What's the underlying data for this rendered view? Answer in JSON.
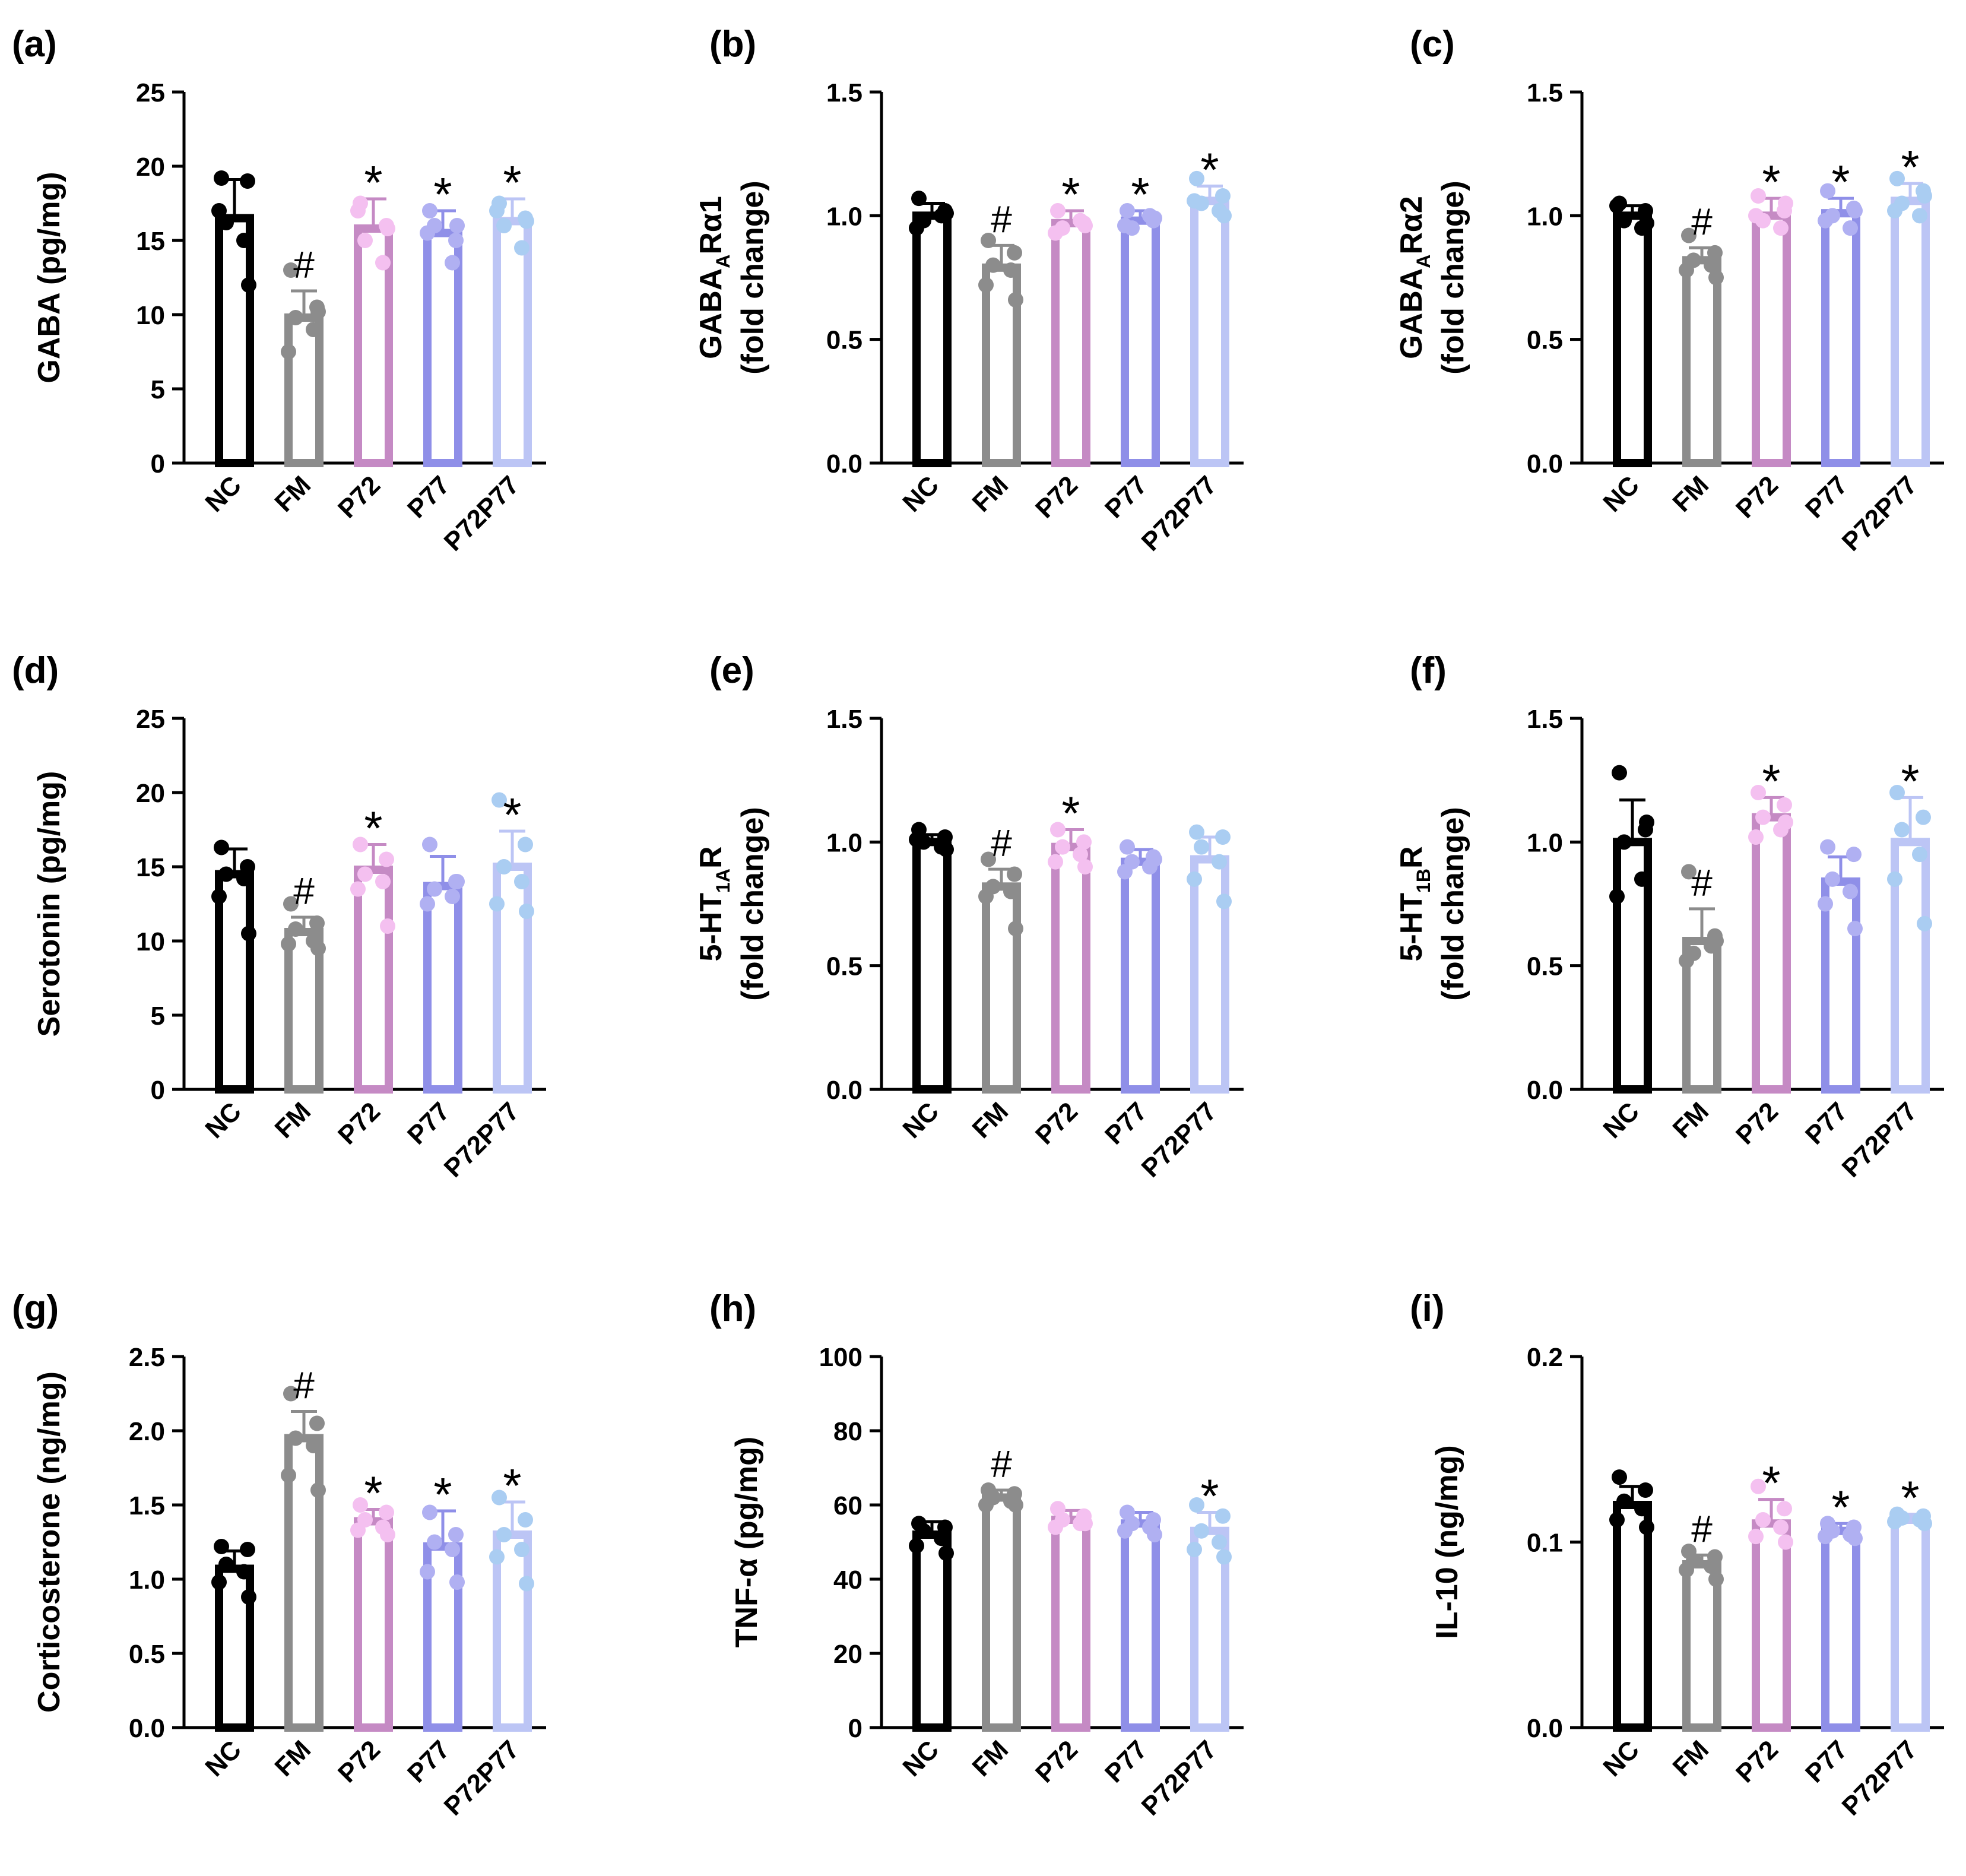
{
  "figure": {
    "categories": [
      "NC",
      "FM",
      "P72",
      "P77",
      "P72P77"
    ],
    "colors": {
      "NC": "#000000",
      "FM": "#8c8c8c",
      "P72": "#c58ac4",
      "P77": "#8f8fe8",
      "P72P77": "#bcc5f5",
      "P72_dots": "#f4c0f0",
      "P77_dots": "#b0b0f2",
      "P72P77_dots": "#aacdf2",
      "text": "#000000"
    }
  },
  "chart_data": [
    {
      "panel": "(a)",
      "type": "bar",
      "ylabel": "GABA (pg/mg)",
      "yticks": [
        "0",
        "5",
        "10",
        "15",
        "20",
        "25"
      ],
      "ylim": [
        0,
        25
      ],
      "categories": [
        "NC",
        "FM",
        "P72",
        "P77",
        "P72P77"
      ],
      "values": [
        16.5,
        9.8,
        15.8,
        15.5,
        16.3
      ],
      "errors": [
        2.6,
        1.8,
        2.0,
        1.5,
        1.5
      ],
      "points": [
        [
          19.2,
          19.0,
          16.2,
          15.0,
          17.0,
          12.0
        ],
        [
          13.0,
          10.5,
          9.8,
          9.0,
          7.5,
          10.2
        ],
        [
          17.5,
          16.0,
          15.0,
          13.5,
          17.0,
          15.8
        ],
        [
          17.0,
          15.0,
          16.0,
          13.5,
          15.5,
          16.0
        ],
        [
          17.5,
          16.5,
          16.0,
          14.5,
          17.0,
          16.3
        ]
      ],
      "markers": [
        "",
        "#",
        "*",
        "*",
        "*"
      ]
    },
    {
      "panel": "(b)",
      "type": "bar",
      "ylabel_main": "GABA",
      "ylabel_sub": "A",
      "ylabel_rest": "Rα1",
      "ylabel2": "(fold change)",
      "yticks": [
        "0.0",
        "0.5",
        "1.0",
        "1.5"
      ],
      "ylim": [
        0,
        1.5
      ],
      "categories": [
        "NC",
        "FM",
        "P72",
        "P77",
        "P72P77"
      ],
      "values": [
        1.0,
        0.79,
        0.97,
        0.98,
        1.06
      ],
      "errors": [
        0.05,
        0.09,
        0.05,
        0.04,
        0.06
      ],
      "points": [
        [
          1.07,
          1.02,
          0.98,
          1.0,
          0.95,
          1.01
        ],
        [
          0.9,
          0.85,
          0.8,
          0.78,
          0.72,
          0.66
        ],
        [
          1.02,
          0.97,
          0.95,
          0.98,
          0.93,
          0.96
        ],
        [
          1.02,
          0.98,
          0.95,
          1.0,
          0.96,
          0.99
        ],
        [
          1.15,
          1.08,
          1.05,
          1.02,
          1.06,
          1.0
        ]
      ],
      "markers": [
        "",
        "#",
        "*",
        "*",
        "*"
      ]
    },
    {
      "panel": "(c)",
      "type": "bar",
      "ylabel_main": "GABA",
      "ylabel_sub": "A",
      "ylabel_rest": "Rα2",
      "ylabel2": "(fold change)",
      "yticks": [
        "0.0",
        "0.5",
        "1.0",
        "1.5"
      ],
      "ylim": [
        0,
        1.5
      ],
      "categories": [
        "NC",
        "FM",
        "P72",
        "P77",
        "P72P77"
      ],
      "values": [
        1.0,
        0.82,
        1.0,
        1.01,
        1.06
      ],
      "errors": [
        0.04,
        0.05,
        0.07,
        0.06,
        0.07
      ],
      "points": [
        [
          1.05,
          1.02,
          0.98,
          0.95,
          1.04,
          0.97
        ],
        [
          0.92,
          0.85,
          0.82,
          0.8,
          0.78,
          0.75
        ],
        [
          1.08,
          1.02,
          0.98,
          0.95,
          1.0,
          1.05
        ],
        [
          1.1,
          1.03,
          1.0,
          0.95,
          0.98,
          1.02
        ],
        [
          1.15,
          1.1,
          1.05,
          1.0,
          1.02,
          1.08
        ]
      ],
      "markers": [
        "",
        "#",
        "*",
        "*",
        "*"
      ]
    },
    {
      "panel": "(d)",
      "type": "bar",
      "ylabel": "Serotonin (pg/mg)",
      "yticks": [
        "0",
        "5",
        "10",
        "15",
        "20",
        "25"
      ],
      "ylim": [
        0,
        25
      ],
      "categories": [
        "NC",
        "FM",
        "P72",
        "P77",
        "P72P77"
      ],
      "values": [
        14.5,
        10.6,
        14.8,
        13.7,
        15.0
      ],
      "errors": [
        1.7,
        1.0,
        1.7,
        2.0,
        2.4
      ],
      "points": [
        [
          16.3,
          15.0,
          14.5,
          14.2,
          13.0,
          10.5
        ],
        [
          12.5,
          11.2,
          10.8,
          10.0,
          9.8,
          9.5
        ],
        [
          16.5,
          15.5,
          14.5,
          14.0,
          13.5,
          11.0
        ],
        [
          16.5,
          14.0,
          13.5,
          13.0,
          12.5,
          14.0
        ],
        [
          19.5,
          16.5,
          15.0,
          14.0,
          12.5,
          12.0
        ]
      ],
      "markers": [
        "",
        "#",
        "*",
        "",
        "*"
      ]
    },
    {
      "panel": "(e)",
      "type": "bar",
      "ylabel_main": "5-HT",
      "ylabel_sub": "1A",
      "ylabel_rest": "R",
      "ylabel2": "(fold change)",
      "yticks": [
        "0.0",
        "0.5",
        "1.0",
        "1.5"
      ],
      "ylim": [
        0,
        1.5
      ],
      "categories": [
        "NC",
        "FM",
        "P72",
        "P77",
        "P72P77"
      ],
      "values": [
        1.0,
        0.82,
        0.98,
        0.92,
        0.93
      ],
      "errors": [
        0.03,
        0.07,
        0.07,
        0.05,
        0.09
      ],
      "points": [
        [
          1.05,
          1.02,
          1.0,
          0.98,
          1.01,
          0.97
        ],
        [
          0.93,
          0.87,
          0.82,
          0.8,
          0.78,
          0.65
        ],
        [
          1.05,
          1.0,
          0.98,
          0.95,
          0.92,
          0.9
        ],
        [
          0.98,
          0.94,
          0.92,
          0.9,
          0.88,
          0.93
        ],
        [
          1.04,
          1.02,
          0.98,
          0.92,
          0.85,
          0.76
        ]
      ],
      "markers": [
        "",
        "#",
        "*",
        "",
        ""
      ]
    },
    {
      "panel": "(f)",
      "type": "bar",
      "ylabel_main": "5-HT",
      "ylabel_sub": "1B",
      "ylabel_rest": "R",
      "ylabel2": "(fold change)",
      "yticks": [
        "0.0",
        "0.5",
        "1.0",
        "1.5"
      ],
      "ylim": [
        0,
        1.5
      ],
      "categories": [
        "NC",
        "FM",
        "P72",
        "P77",
        "P72P77"
      ],
      "values": [
        1.0,
        0.6,
        1.1,
        0.84,
        1.0
      ],
      "errors": [
        0.17,
        0.13,
        0.08,
        0.1,
        0.18
      ],
      "points": [
        [
          1.28,
          1.05,
          1.0,
          0.85,
          0.78,
          1.08
        ],
        [
          0.88,
          0.62,
          0.55,
          0.58,
          0.52,
          0.6
        ],
        [
          1.2,
          1.15,
          1.1,
          1.05,
          1.02,
          1.08
        ],
        [
          0.98,
          0.95,
          0.85,
          0.8,
          0.75,
          0.65
        ],
        [
          1.2,
          1.1,
          1.05,
          0.95,
          0.85,
          0.67
        ]
      ],
      "markers": [
        "",
        "#",
        "*",
        "",
        "*"
      ]
    },
    {
      "panel": "(g)",
      "type": "bar",
      "ylabel": "Corticosterone (ng/mg)",
      "yticks": [
        "0.0",
        "0.5",
        "1.0",
        "1.5",
        "2.0",
        "2.5"
      ],
      "ylim": [
        0,
        2.5
      ],
      "categories": [
        "NC",
        "FM",
        "P72",
        "P77",
        "P72P77"
      ],
      "values": [
        1.07,
        1.95,
        1.39,
        1.22,
        1.3
      ],
      "errors": [
        0.12,
        0.18,
        0.08,
        0.24,
        0.22
      ],
      "points": [
        [
          1.22,
          1.2,
          1.1,
          1.05,
          0.98,
          0.88
        ],
        [
          2.25,
          2.05,
          1.95,
          1.9,
          1.7,
          1.6
        ],
        [
          1.5,
          1.45,
          1.4,
          1.35,
          1.33,
          1.3
        ],
        [
          1.45,
          1.3,
          1.25,
          1.2,
          1.05,
          0.98
        ],
        [
          1.55,
          1.4,
          1.3,
          1.2,
          1.15,
          0.97
        ]
      ],
      "markers": [
        "",
        "#",
        "*",
        "*",
        "*"
      ]
    },
    {
      "panel": "(h)",
      "type": "bar",
      "ylabel": "TNF-α (pg/mg)",
      "yticks": [
        "0",
        "20",
        "40",
        "60",
        "80",
        "100"
      ],
      "ylim": [
        0,
        100
      ],
      "categories": [
        "NC",
        "FM",
        "P72",
        "P77",
        "P72P77"
      ],
      "values": [
        52,
        62,
        56,
        55,
        53
      ],
      "errors": [
        3.5,
        2.0,
        2.5,
        3.0,
        5.0
      ],
      "points": [
        [
          55,
          54,
          53,
          51,
          49,
          47
        ],
        [
          64,
          63,
          62,
          61,
          60,
          60
        ],
        [
          59,
          57,
          56,
          55,
          54,
          55
        ],
        [
          58,
          56,
          55,
          54,
          53,
          52
        ],
        [
          60,
          57,
          53,
          50,
          48,
          46
        ]
      ],
      "markers": [
        "",
        "#",
        "",
        "",
        "*"
      ]
    },
    {
      "panel": "(i)",
      "type": "bar",
      "ylabel": "IL-10 (ng/mg)",
      "yticks": [
        "0.0",
        "0.1",
        "0.2"
      ],
      "ylim": [
        0,
        0.2
      ],
      "categories": [
        "NC",
        "FM",
        "P72",
        "P77",
        "P72P77"
      ],
      "values": [
        0.12,
        0.088,
        0.11,
        0.106,
        0.112
      ],
      "errors": [
        0.01,
        0.005,
        0.013,
        0.004,
        0.003
      ],
      "points": [
        [
          0.135,
          0.128,
          0.122,
          0.118,
          0.112,
          0.108
        ],
        [
          0.095,
          0.092,
          0.09,
          0.087,
          0.085,
          0.08
        ],
        [
          0.13,
          0.118,
          0.112,
          0.108,
          0.103,
          0.1
        ],
        [
          0.11,
          0.108,
          0.106,
          0.104,
          0.103,
          0.102
        ],
        [
          0.115,
          0.114,
          0.113,
          0.112,
          0.111,
          0.11
        ]
      ],
      "markers": [
        "",
        "#",
        "*",
        "*",
        "*"
      ]
    }
  ]
}
